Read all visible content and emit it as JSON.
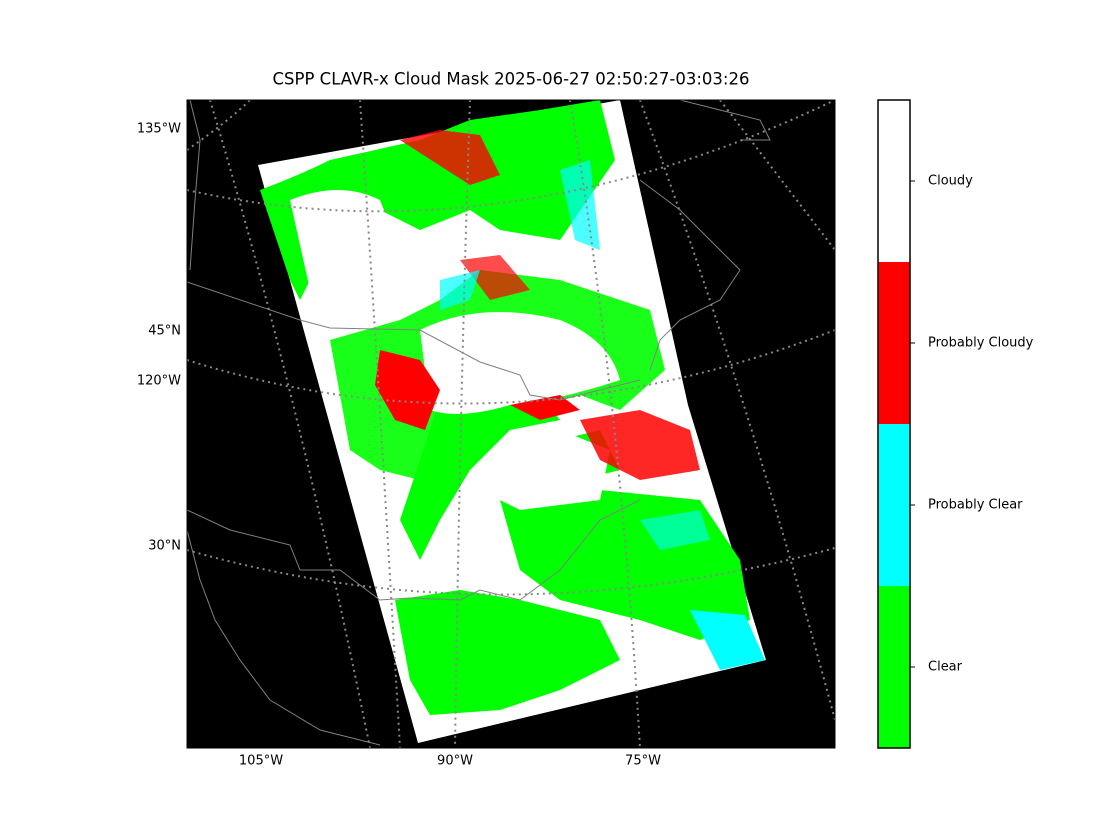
{
  "title": "CSPP CLAVR-x Cloud Mask 2025-06-27 02:50:27-03:03:26",
  "map": {
    "lat_labels": [
      "135°W",
      "45°N",
      "120°W",
      "30°N"
    ],
    "lon_labels": [
      "105°W",
      "90°W",
      "75°W"
    ]
  },
  "colorbar": {
    "classes": [
      {
        "label": "Cloudy",
        "color": "#ffffff"
      },
      {
        "label": "Probably Cloudy",
        "color": "#ff0000"
      },
      {
        "label": "Probably Clear",
        "color": "#00ffff"
      },
      {
        "label": "Clear",
        "color": "#00ff00"
      }
    ]
  }
}
